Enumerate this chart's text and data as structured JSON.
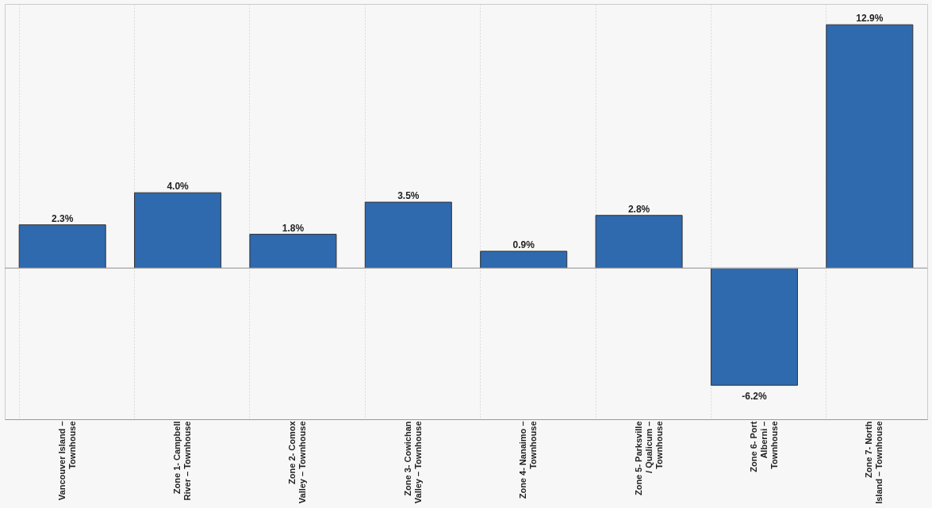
{
  "chart_data": {
    "type": "bar",
    "categories": [
      "Vancouver Island – Townhouse",
      "Zone 1- Campbell River – Townhouse",
      "Zone 2- Comox Valley – Townhouse",
      "Zone 3- Cowichan Valley – Townhouse",
      "Zone 4- Nanaimo – Townhouse",
      "Zone 5- Parksville / Qualicum – Townhouse",
      "Zone 6- Port Alberni – Townhouse",
      "Zone 7- North Island – Townhouse"
    ],
    "values": [
      2.3,
      4.0,
      1.8,
      3.5,
      0.9,
      2.8,
      -6.2,
      12.9
    ],
    "value_labels": [
      "2.3%",
      "4.0%",
      "1.8%",
      "3.5%",
      "0.9%",
      "2.8%",
      "-6.2%",
      "12.9%"
    ],
    "color": "#2f69ae",
    "grid": "x"
  }
}
